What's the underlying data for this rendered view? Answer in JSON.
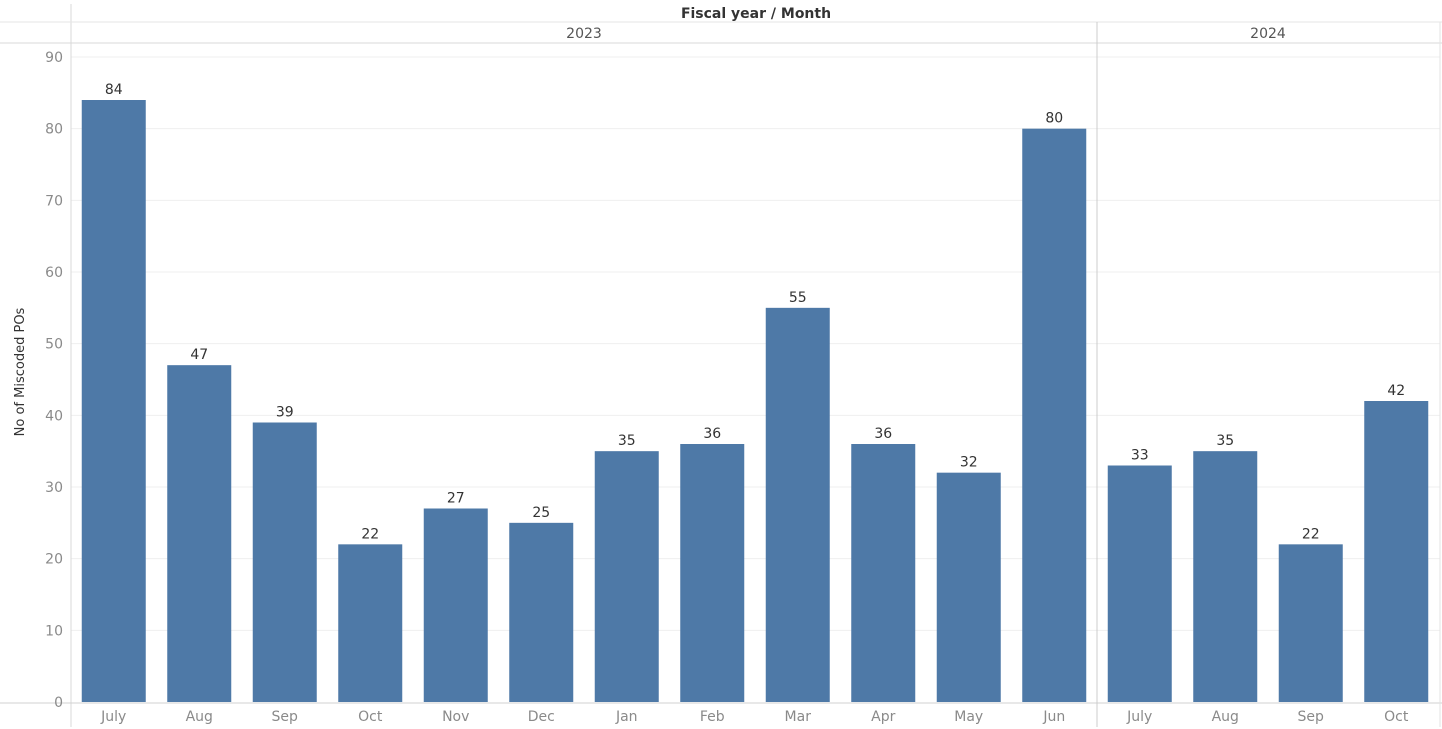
{
  "chart_data": {
    "type": "bar",
    "title": "Fiscal year / Month",
    "ylabel": "No of Miscoded POs",
    "ylim": [
      0,
      90
    ],
    "yticks": [
      0,
      10,
      20,
      30,
      40,
      50,
      60,
      70,
      80,
      90
    ],
    "grid": true,
    "bar_color": "#4e79a7",
    "groups": [
      {
        "name": "2023",
        "categories": [
          "July",
          "Aug",
          "Sep",
          "Oct",
          "Nov",
          "Dec",
          "Jan",
          "Feb",
          "Mar",
          "Apr",
          "May",
          "Jun"
        ],
        "values": [
          84,
          47,
          39,
          22,
          27,
          25,
          35,
          36,
          55,
          36,
          32,
          80
        ]
      },
      {
        "name": "2024",
        "categories": [
          "July",
          "Aug",
          "Sep",
          "Oct"
        ],
        "values": [
          33,
          35,
          22,
          42
        ]
      }
    ]
  }
}
